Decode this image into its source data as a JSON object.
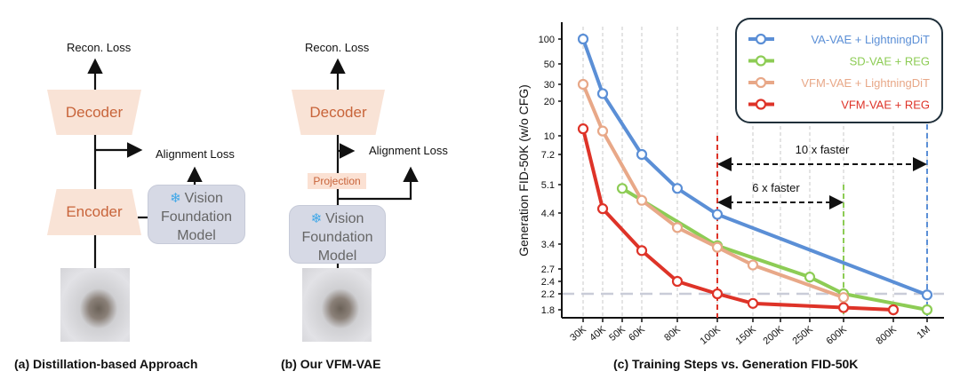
{
  "diagram_a": {
    "recon_loss": "Recon. Loss",
    "decoder": "Decoder",
    "encoder": "Encoder",
    "alignment_loss": "Alignment Loss",
    "vfm": [
      "Vision",
      "Foundation",
      "Model"
    ],
    "caption": "(a) Distillation-based Approach"
  },
  "diagram_b": {
    "recon_loss": "Recon. Loss",
    "decoder": "Decoder",
    "projection": "Projection",
    "alignment_loss": "Alignment Loss",
    "vfm": [
      "Vision",
      "Foundation",
      "Model"
    ],
    "caption": "(b) Our VFM-VAE"
  },
  "chart_data": {
    "type": "line",
    "title": "(c) Training Steps vs. Generation FID-50K",
    "xlabel": "",
    "ylabel": "Generation FID-50K (w/o CFG)",
    "categories": [
      "30K",
      "40K",
      "50K",
      "60K",
      "80K",
      "100K",
      "150K",
      "200K",
      "250K",
      "600K",
      "800K",
      "1M"
    ],
    "y_ticks": [
      100,
      50,
      30,
      20,
      10,
      7.2,
      5.1,
      4.4,
      3.4,
      2.7,
      2.4,
      2.2,
      1.8
    ],
    "y_scale": "nonlinear (log-like)",
    "grid": "vertical dashed",
    "legend_position": "top-right",
    "reference_line": 2.2,
    "series": [
      {
        "name": "VA-VAE + LightningDiT",
        "color": "#5b8fd6",
        "points": [
          [
            "30K",
            100
          ],
          [
            "40K",
            24
          ],
          [
            "60K",
            7.2
          ],
          [
            "80K",
            5.0
          ],
          [
            "100K",
            4.35
          ],
          [
            "1M",
            2.17
          ]
        ]
      },
      {
        "name": "SD-VAE + REG",
        "color": "#8dcc55",
        "points": [
          [
            "50K",
            5.0
          ],
          [
            "100K",
            3.35
          ],
          [
            "250K",
            2.5
          ],
          [
            "600K",
            2.2
          ],
          [
            "1M",
            1.75
          ]
        ]
      },
      {
        "name": "VFM-VAE + LightningDiT",
        "color": "#e8a888",
        "points": [
          [
            "30K",
            30
          ],
          [
            "40K",
            11
          ],
          [
            "60K",
            4.7
          ],
          [
            "80K",
            3.9
          ],
          [
            "100K",
            3.3
          ],
          [
            "150K",
            2.8
          ],
          [
            "600K",
            2.1
          ]
        ]
      },
      {
        "name": "VFM-VAE + REG",
        "color": "#de3328",
        "points": [
          [
            "30K",
            11.5
          ],
          [
            "40K",
            4.5
          ],
          [
            "60K",
            3.2
          ],
          [
            "80K",
            2.4
          ],
          [
            "100K",
            2.2
          ],
          [
            "150K",
            1.95
          ],
          [
            "600K",
            1.85
          ],
          [
            "800K",
            1.8
          ]
        ]
      }
    ],
    "annotations": [
      {
        "text": "10 x faster",
        "from": "100K",
        "to": "1M"
      },
      {
        "text": "6 x faster",
        "from": "100K",
        "to": "600K"
      }
    ]
  }
}
